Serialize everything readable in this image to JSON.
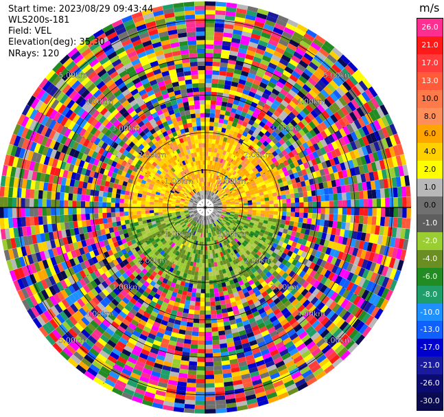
{
  "info": {
    "start_time": "Start time: 2023/08/29 09:43:44",
    "site": "WLS200s-181",
    "field": "Field: VEL",
    "elevation": "Elevation(deg): 35.30",
    "nrays": "NRays: 120"
  },
  "colorbar": {
    "unit": "m/s",
    "labels": [
      "26.0",
      "21.0",
      "17.0",
      "13.0",
      "10.0",
      "8.0",
      "6.0",
      "4.0",
      "2.0",
      "1.0",
      "0.0",
      "-1.0",
      "-2.0",
      "-4.0",
      "-6.0",
      "-8.0",
      "-10.0",
      "-13.0",
      "-17.0",
      "-21.0",
      "-26.0",
      "-30.0"
    ],
    "colors": [
      "#ff2f92",
      "#ff1a1a",
      "#ff3b3b",
      "#ff5a3a",
      "#ff7a4a",
      "#ff8f5a",
      "#ffa500",
      "#ffd000",
      "#ffff00",
      "#b8b8b8",
      "#707070",
      "#5e5e5e",
      "#9acd32",
      "#6b8e23",
      "#228b22",
      "#1f9e6a",
      "#1e90ff",
      "#1060ff",
      "#0000cd",
      "#1a1a9e",
      "#0b0b70",
      "#0a0a50"
    ]
  },
  "chart_data": {
    "type": "ppi",
    "field": "VEL",
    "unit": "m/s",
    "nrays": 120,
    "elevation_deg": 35.3,
    "range_ring_labels": [
      "1.00km",
      "2.00km",
      "3.00km",
      "4.00km",
      "5.00km"
    ],
    "range_rings_km": [
      1,
      2,
      3,
      4,
      5
    ],
    "max_range_km": 5.5,
    "velocity_pattern": {
      "near_field_km": 2.0,
      "north_sector": "positive (yellow/orange, ~2 to 6 m/s)",
      "south_sector": "negative (green, ~-2 to -4 m/s)",
      "beyond_2km": "noise (random colors across full scale)"
    }
  }
}
